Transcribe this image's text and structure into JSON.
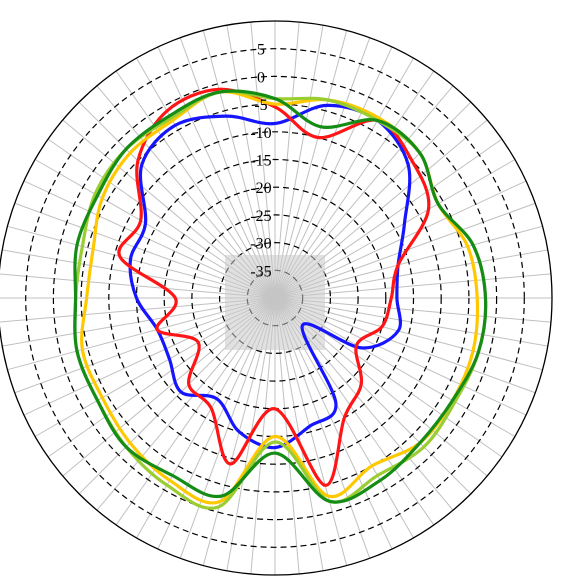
{
  "chart_data": {
    "type": "polar-line",
    "title": "",
    "radial_axis": {
      "min": -40,
      "max": 10,
      "ticks": [
        5,
        0,
        -5,
        -10,
        -15,
        -20,
        -25,
        -30,
        -35
      ],
      "tick_labels": [
        "5",
        "0",
        "-5",
        "-10",
        "-15",
        "-20",
        "-25",
        "-30",
        "-35"
      ]
    },
    "angular_axis": {
      "spokes": 72,
      "step_deg": 5,
      "tick_labels": []
    },
    "grid": true,
    "legend": "none",
    "series": [
      {
        "color": "#1515ff",
        "points": [
          [
            0,
            -8.5
          ],
          [
            15,
            -4
          ],
          [
            30,
            -3
          ],
          [
            45,
            -6
          ],
          [
            60,
            -13
          ],
          [
            75,
            -17
          ],
          [
            90,
            -18
          ],
          [
            105,
            -17
          ],
          [
            120,
            -22
          ],
          [
            135,
            -33
          ],
          [
            150,
            -18
          ],
          [
            165,
            -16
          ],
          [
            180,
            -13
          ],
          [
            195,
            -15
          ],
          [
            210,
            -19
          ],
          [
            225,
            -16
          ],
          [
            240,
            -18
          ],
          [
            255,
            -18
          ],
          [
            270,
            -15
          ],
          [
            285,
            -13
          ],
          [
            300,
            -13
          ],
          [
            315,
            -6
          ],
          [
            330,
            -4
          ],
          [
            345,
            -6
          ]
        ]
      },
      {
        "color": "#ff1515",
        "points": [
          [
            0,
            -5.5
          ],
          [
            15,
            -10
          ],
          [
            30,
            -3
          ],
          [
            45,
            -5
          ],
          [
            60,
            -8
          ],
          [
            75,
            -17
          ],
          [
            90,
            -19
          ],
          [
            105,
            -20
          ],
          [
            120,
            -23
          ],
          [
            135,
            -18
          ],
          [
            150,
            -15
          ],
          [
            165,
            -5
          ],
          [
            180,
            -20
          ],
          [
            195,
            -9
          ],
          [
            210,
            -17
          ],
          [
            225,
            -18
          ],
          [
            240,
            -24
          ],
          [
            255,
            -18
          ],
          [
            270,
            -22
          ],
          [
            285,
            -11
          ],
          [
            300,
            -12
          ],
          [
            315,
            -5
          ],
          [
            330,
            -1
          ],
          [
            345,
            -1
          ]
        ]
      },
      {
        "color": "#ffc800",
        "points": [
          [
            0,
            -5
          ],
          [
            15,
            -3
          ],
          [
            30,
            -2.5
          ],
          [
            45,
            -3
          ],
          [
            60,
            -6
          ],
          [
            75,
            -4
          ],
          [
            90,
            -3.5
          ],
          [
            105,
            -3
          ],
          [
            120,
            -3
          ],
          [
            135,
            -3
          ],
          [
            150,
            -5
          ],
          [
            165,
            -3
          ],
          [
            180,
            -15
          ],
          [
            195,
            -2
          ],
          [
            210,
            -2
          ],
          [
            225,
            -3
          ],
          [
            240,
            -4
          ],
          [
            255,
            -4
          ],
          [
            270,
            -6
          ],
          [
            285,
            -6
          ],
          [
            300,
            -4
          ],
          [
            315,
            -3
          ],
          [
            330,
            -3
          ],
          [
            345,
            -1.5
          ]
        ]
      },
      {
        "color": "#9acd32",
        "points": [
          [
            0,
            -4
          ],
          [
            15,
            -3
          ],
          [
            30,
            -3
          ],
          [
            45,
            -3
          ],
          [
            60,
            -6
          ],
          [
            75,
            -3
          ],
          [
            90,
            -2
          ],
          [
            105,
            -2
          ],
          [
            120,
            -2.5
          ],
          [
            135,
            -2
          ],
          [
            150,
            -3
          ],
          [
            165,
            -2
          ],
          [
            180,
            -14
          ],
          [
            195,
            -1
          ],
          [
            210,
            -1
          ],
          [
            225,
            -2
          ],
          [
            240,
            -3
          ],
          [
            255,
            -3
          ],
          [
            270,
            -4
          ],
          [
            285,
            -4
          ],
          [
            300,
            -2.5
          ],
          [
            315,
            -2
          ],
          [
            330,
            -2.5
          ],
          [
            345,
            -1.5
          ]
        ]
      },
      {
        "color": "#158c15",
        "points": [
          [
            0,
            -4
          ],
          [
            15,
            -8
          ],
          [
            30,
            -3
          ],
          [
            45,
            -3
          ],
          [
            60,
            -6
          ],
          [
            75,
            -3
          ],
          [
            90,
            -2
          ],
          [
            105,
            -2
          ],
          [
            120,
            -3
          ],
          [
            135,
            -3
          ],
          [
            150,
            -2
          ],
          [
            165,
            -2
          ],
          [
            180,
            -12
          ],
          [
            195,
            -3
          ],
          [
            210,
            -3
          ],
          [
            225,
            -2
          ],
          [
            240,
            -3
          ],
          [
            255,
            -3
          ],
          [
            270,
            -4
          ],
          [
            285,
            -3
          ],
          [
            300,
            -3
          ],
          [
            315,
            -2
          ],
          [
            330,
            -2
          ],
          [
            345,
            -1.5
          ]
        ]
      }
    ]
  }
}
